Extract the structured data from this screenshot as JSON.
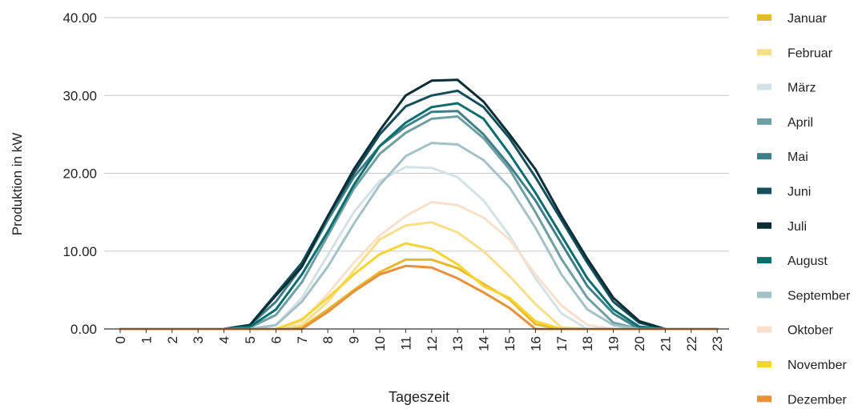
{
  "chart_data": {
    "type": "line",
    "title": "",
    "xlabel": "Tageszeit",
    "ylabel": "Produktion in kW",
    "ylim": [
      0,
      40
    ],
    "yticks": [
      "0.00",
      "10.00",
      "20.00",
      "30.00",
      "40.00"
    ],
    "x": [
      "0",
      "1",
      "2",
      "3",
      "4",
      "5",
      "6",
      "7",
      "8",
      "9",
      "10",
      "11",
      "12",
      "13",
      "14",
      "15",
      "16",
      "17",
      "18",
      "19",
      "20",
      "21",
      "22",
      "23"
    ],
    "grid": true,
    "legend": "right",
    "series": [
      {
        "name": "Januar",
        "color": "#E8B92E",
        "values": [
          0,
          0,
          0,
          0,
          0,
          0,
          0,
          0.2,
          2.5,
          5,
          7.3,
          8.9,
          8.9,
          7.8,
          5.8,
          3.8,
          0.6,
          0,
          0,
          0,
          0,
          0,
          0,
          0
        ]
      },
      {
        "name": "Februar",
        "color": "#F9DE8A",
        "values": [
          0,
          0,
          0,
          0,
          0,
          0,
          0,
          0.5,
          3.5,
          7.5,
          11.5,
          13.3,
          13.7,
          12.4,
          10,
          6.8,
          3.2,
          0.2,
          0,
          0,
          0,
          0,
          0,
          0
        ]
      },
      {
        "name": "März",
        "color": "#D4E2E5",
        "values": [
          0,
          0,
          0,
          0,
          0,
          0,
          0.5,
          4,
          9.5,
          15,
          19,
          20.8,
          20.7,
          19.5,
          16.5,
          12,
          6.5,
          2,
          0,
          0,
          0,
          0,
          0,
          0
        ]
      },
      {
        "name": "April",
        "color": "#6E9FA3",
        "values": [
          0,
          0,
          0,
          0,
          0,
          0.2,
          1.8,
          6,
          12,
          18,
          22.5,
          25.2,
          27,
          27.3,
          24.5,
          20.5,
          15,
          9,
          4,
          0.8,
          0,
          0,
          0,
          0
        ]
      },
      {
        "name": "Mai",
        "color": "#3F7F8A",
        "values": [
          0,
          0,
          0,
          0,
          0,
          0.5,
          3.5,
          8,
          14,
          19.5,
          23.5,
          26,
          27.9,
          28,
          25,
          21,
          16.5,
          11,
          5.5,
          2,
          0,
          0,
          0,
          0
        ]
      },
      {
        "name": "Juni",
        "color": "#164E5C",
        "values": [
          0,
          0,
          0,
          0,
          0,
          0.5,
          4.5,
          8.5,
          14.5,
          20,
          25,
          28.6,
          30,
          30.6,
          28.5,
          24.5,
          19.5,
          14,
          8.5,
          3.5,
          0.8,
          0,
          0,
          0
        ]
      },
      {
        "name": "Juli",
        "color": "#0C2E36",
        "values": [
          0,
          0,
          0,
          0,
          0,
          0.5,
          4.3,
          8,
          14.5,
          20.5,
          25.5,
          30,
          31.9,
          32,
          29.2,
          25,
          20.5,
          14.5,
          9,
          4,
          1,
          0,
          0,
          0
        ]
      },
      {
        "name": "August",
        "color": "#0B6E6E",
        "values": [
          0,
          0,
          0,
          0,
          0,
          0.3,
          2.5,
          7,
          12.5,
          18.5,
          23.5,
          26.5,
          28.5,
          29,
          27,
          22.5,
          17.5,
          12,
          6.5,
          2.5,
          0.3,
          0,
          0,
          0
        ]
      },
      {
        "name": "September",
        "color": "#A3C2C8",
        "values": [
          0,
          0,
          0,
          0,
          0,
          0,
          0.5,
          3.5,
          8,
          13.5,
          18.5,
          22.2,
          23.9,
          23.7,
          21.7,
          18.2,
          13,
          7,
          2.5,
          0.5,
          0,
          0,
          0,
          0
        ]
      },
      {
        "name": "Oktober",
        "color": "#FAE0CC",
        "values": [
          0,
          0,
          0,
          0,
          0,
          0,
          0,
          1,
          4.5,
          8.5,
          12,
          14.5,
          16.3,
          15.9,
          14.3,
          11.5,
          7,
          3,
          0.5,
          0,
          0,
          0,
          0,
          0
        ]
      },
      {
        "name": "November",
        "color": "#F8D431",
        "values": [
          0,
          0,
          0,
          0,
          0,
          0,
          0,
          1.2,
          4,
          7,
          9.6,
          11,
          10.3,
          8.3,
          5.5,
          4,
          1,
          0,
          0,
          0,
          0,
          0,
          0,
          0
        ]
      },
      {
        "name": "Dezember",
        "color": "#E8913A",
        "values": [
          0,
          0,
          0,
          0,
          0,
          0,
          0,
          0,
          2.2,
          4.8,
          7,
          8.1,
          7.9,
          6.5,
          4.7,
          2.7,
          0,
          0,
          0,
          0,
          0,
          0,
          0,
          0
        ]
      }
    ]
  }
}
